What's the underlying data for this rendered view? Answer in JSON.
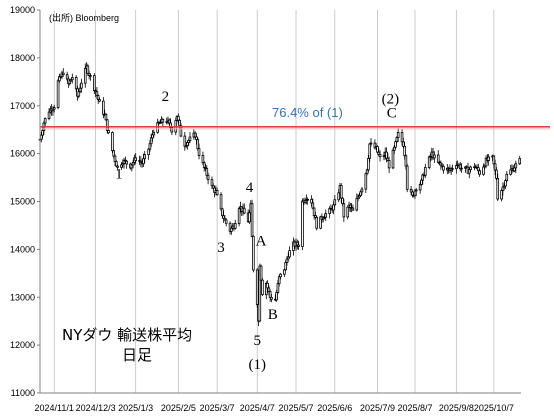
{
  "source": "(出所) Bloomberg",
  "chart_title_line1": "NYダウ 輸送株平均",
  "chart_title_line2": "日足",
  "chart_data": {
    "type": "candlestick",
    "y_ticks": [
      "11000",
      "12000",
      "13000",
      "14000",
      "15000",
      "16000",
      "17000",
      "18000",
      "19000"
    ],
    "ylim": [
      11000,
      19000
    ],
    "x_ticks": [
      "2024/11/1",
      "2024/12/3",
      "2025/1/3",
      "2025/2/5",
      "2025/3/7",
      "2025/4/7",
      "2025/5/7",
      "2025/6/6",
      "2025/7/9",
      "2025/8/7",
      "2025/9/8",
      "2025/10/7"
    ],
    "x_tick_dates": [
      "2024-11-01",
      "2024-12-03",
      "2025-01-03",
      "2025-02-05",
      "2025-03-07",
      "2025-04-07",
      "2025-05-07",
      "2025-06-06",
      "2025-07-09",
      "2025-08-07",
      "2025-09-08",
      "2025-10-07"
    ],
    "xlim": [
      "2024-10-21",
      "2025-10-28"
    ],
    "grid": "vertical",
    "reference_line": {
      "value": 16560,
      "label": "76.4% of (1)",
      "color": "#e04040",
      "label_color": "#2e75b6"
    },
    "series_path": [
      [
        "2024-10-21",
        16300
      ],
      [
        "2024-10-24",
        16650
      ],
      [
        "2024-10-28",
        16900
      ],
      [
        "2024-11-01",
        17000
      ],
      [
        "2024-11-04",
        17500
      ],
      [
        "2024-11-08",
        17700
      ],
      [
        "2024-11-12",
        17450
      ],
      [
        "2024-11-15",
        17600
      ],
      [
        "2024-11-19",
        17200
      ],
      [
        "2024-11-22",
        17500
      ],
      [
        "2024-11-26",
        17800
      ],
      [
        "2024-11-29",
        17600
      ],
      [
        "2024-12-03",
        17300
      ],
      [
        "2024-12-06",
        17050
      ],
      [
        "2024-12-10",
        16800
      ],
      [
        "2024-12-13",
        16400
      ],
      [
        "2024-12-17",
        15950
      ],
      [
        "2024-12-20",
        15700
      ],
      [
        "2024-12-24",
        15850
      ],
      [
        "2024-12-30",
        15750
      ],
      [
        "2025-01-03",
        15900
      ],
      [
        "2025-01-08",
        15800
      ],
      [
        "2025-01-13",
        16100
      ],
      [
        "2025-01-17",
        16500
      ],
      [
        "2025-01-22",
        16650
      ],
      [
        "2025-01-27",
        16700
      ],
      [
        "2025-01-31",
        16500
      ],
      [
        "2025-02-04",
        16800
      ],
      [
        "2025-02-07",
        16400
      ],
      [
        "2025-02-10",
        16200
      ],
      [
        "2025-02-14",
        16300
      ],
      [
        "2025-02-18",
        16400
      ],
      [
        "2025-02-21",
        16000
      ],
      [
        "2025-02-25",
        15700
      ],
      [
        "2025-03-03",
        15300
      ],
      [
        "2025-03-06",
        15200
      ],
      [
        "2025-03-10",
        14800
      ],
      [
        "2025-03-13",
        14600
      ],
      [
        "2025-03-17",
        14400
      ],
      [
        "2025-03-20",
        14500
      ],
      [
        "2025-03-24",
        14900
      ],
      [
        "2025-03-27",
        14800
      ],
      [
        "2025-03-31",
        14600
      ],
      [
        "2025-04-02",
        14900
      ],
      [
        "2025-04-04",
        13600
      ],
      [
        "2025-04-07",
        12900
      ],
      [
        "2025-04-08",
        12500
      ],
      [
        "2025-04-09",
        13700
      ],
      [
        "2025-04-11",
        13100
      ],
      [
        "2025-04-14",
        13300
      ],
      [
        "2025-04-17",
        13000
      ],
      [
        "2025-04-21",
        12950
      ],
      [
        "2025-04-24",
        13400
      ],
      [
        "2025-04-28",
        13600
      ],
      [
        "2025-05-01",
        13900
      ],
      [
        "2025-05-05",
        14100
      ],
      [
        "2025-05-09",
        14100
      ],
      [
        "2025-05-12",
        15000
      ],
      [
        "2025-05-15",
        15100
      ],
      [
        "2025-05-19",
        15000
      ],
      [
        "2025-05-23",
        14500
      ],
      [
        "2025-05-28",
        14700
      ],
      [
        "2025-06-02",
        14800
      ],
      [
        "2025-06-05",
        14900
      ],
      [
        "2025-06-10",
        15300
      ],
      [
        "2025-06-13",
        14700
      ],
      [
        "2025-06-17",
        14900
      ],
      [
        "2025-06-20",
        14800
      ],
      [
        "2025-06-24",
        15100
      ],
      [
        "2025-06-27",
        15300
      ],
      [
        "2025-07-01",
        15700
      ],
      [
        "2025-07-03",
        16200
      ],
      [
        "2025-07-08",
        16100
      ],
      [
        "2025-07-11",
        15900
      ],
      [
        "2025-07-15",
        16000
      ],
      [
        "2025-07-18",
        15750
      ],
      [
        "2025-07-22",
        16100
      ],
      [
        "2025-07-25",
        16400
      ],
      [
        "2025-07-29",
        16200
      ],
      [
        "2025-07-31",
        15800
      ],
      [
        "2025-08-01",
        15300
      ],
      [
        "2025-08-05",
        15100
      ],
      [
        "2025-08-08",
        15300
      ],
      [
        "2025-08-12",
        15400
      ],
      [
        "2025-08-15",
        15700
      ],
      [
        "2025-08-20",
        16000
      ],
      [
        "2025-08-25",
        15800
      ],
      [
        "2025-08-29",
        15700
      ],
      [
        "2025-09-03",
        15650
      ],
      [
        "2025-09-08",
        15800
      ],
      [
        "2025-09-12",
        15700
      ],
      [
        "2025-09-17",
        15650
      ],
      [
        "2025-09-22",
        15750
      ],
      [
        "2025-09-26",
        15600
      ],
      [
        "2025-10-01",
        15850
      ],
      [
        "2025-10-06",
        15900
      ],
      [
        "2025-10-09",
        15500
      ],
      [
        "2025-10-10",
        15100
      ],
      [
        "2025-10-14",
        15300
      ],
      [
        "2025-10-17",
        15550
      ],
      [
        "2025-10-22",
        15700
      ],
      [
        "2025-10-27",
        15850
      ]
    ],
    "annotations": [
      {
        "text": "1",
        "x": "2024-12-21",
        "y": 15480
      },
      {
        "text": "2",
        "x": "2025-01-26",
        "y": 17100
      },
      {
        "text": "3",
        "x": "2025-03-10",
        "y": 13950
      },
      {
        "text": "4",
        "x": "2025-04-01",
        "y": 15200
      },
      {
        "text": "A",
        "x": "2025-04-10",
        "y": 14080
      },
      {
        "text": "B",
        "x": "2025-04-19",
        "y": 12550
      },
      {
        "text": "5",
        "x": "2025-04-07",
        "y": 12000
      },
      {
        "text": "(1)",
        "x": "2025-04-07",
        "y": 11500
      },
      {
        "text": "(2)",
        "x": "2025-07-19",
        "y": 17050
      },
      {
        "text": "C",
        "x": "2025-07-20",
        "y": 16750
      }
    ]
  }
}
